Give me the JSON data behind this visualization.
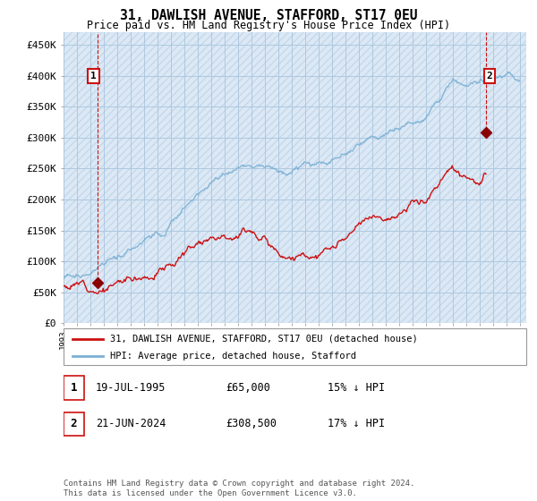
{
  "title": "31, DAWLISH AVENUE, STAFFORD, ST17 0EU",
  "subtitle": "Price paid vs. HM Land Registry's House Price Index (HPI)",
  "ylabel_ticks": [
    "£0",
    "£50K",
    "£100K",
    "£150K",
    "£200K",
    "£250K",
    "£300K",
    "£350K",
    "£400K",
    "£450K"
  ],
  "ytick_vals": [
    0,
    50000,
    100000,
    150000,
    200000,
    250000,
    300000,
    350000,
    400000,
    450000
  ],
  "ylim": [
    0,
    470000
  ],
  "xlim_start": 1993.0,
  "xlim_end": 2027.5,
  "hpi_color": "#7ab0d4",
  "price_color": "#cc1111",
  "marker_color": "#8b0000",
  "annotation_box_color": "#cc1111",
  "plot_bg_color": "#dce9f5",
  "hatch_color": "#c5d8ec",
  "legend_label_price": "31, DAWLISH AVENUE, STAFFORD, ST17 0EU (detached house)",
  "legend_label_hpi": "HPI: Average price, detached house, Stafford",
  "annotation1_label": "1",
  "annotation1_date": "19-JUL-1995",
  "annotation1_price": "£65,000",
  "annotation1_detail": "15% ↓ HPI",
  "annotation2_label": "2",
  "annotation2_date": "21-JUN-2024",
  "annotation2_price": "£308,500",
  "annotation2_detail": "17% ↓ HPI",
  "footer": "Contains HM Land Registry data © Crown copyright and database right 2024.\nThis data is licensed under the Open Government Licence v3.0.",
  "hatch_pattern": "////",
  "background_color": "#ffffff",
  "grid_color": "#aec8df",
  "marker1_x": 1995.55,
  "marker1_y": 65000,
  "marker2_x": 2024.47,
  "marker2_y": 308500,
  "ann1_x": 1995.55,
  "ann1_y": 400000,
  "ann2_x": 2024.47,
  "ann2_y": 400000
}
